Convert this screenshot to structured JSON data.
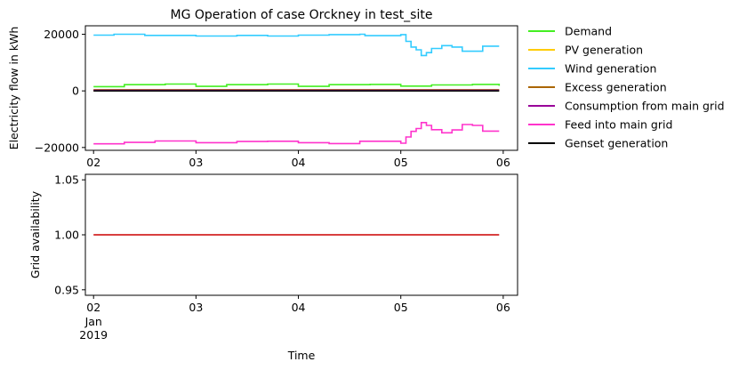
{
  "chart_data": [
    {
      "type": "line",
      "title": "MG Operation of case Orckney in test_site",
      "xlabel": "",
      "ylabel": "Electricity flow in kWh",
      "xlim": [
        1.92,
        6.14
      ],
      "ylim": [
        -21000,
        23000
      ],
      "yticks": [
        -20000,
        0,
        20000
      ],
      "yticklabels": [
        "−20000",
        "0",
        "20000"
      ],
      "xticks": [
        2,
        3,
        4,
        5,
        6
      ],
      "xticklabels": [
        "02",
        "03",
        "04",
        "05",
        "06"
      ],
      "legend_position": "outside-right",
      "series": [
        {
          "name": "Demand",
          "color": "#44ee22",
          "x": [
            2.0,
            2.3,
            2.7,
            3.0,
            3.3,
            3.7,
            4.0,
            4.3,
            4.7,
            5.0,
            5.3,
            5.7,
            5.96
          ],
          "values": [
            1500,
            2200,
            2400,
            1600,
            2200,
            2400,
            1600,
            2200,
            2300,
            1700,
            2100,
            2300,
            1800
          ]
        },
        {
          "name": "PV generation",
          "color": "#ffcc00",
          "x": [
            2.0,
            5.96
          ],
          "values": [
            0,
            0
          ]
        },
        {
          "name": "Wind generation",
          "color": "#33ccff",
          "x": [
            2.0,
            2.2,
            2.5,
            2.8,
            3.0,
            3.4,
            3.7,
            4.0,
            4.3,
            4.6,
            4.65,
            5.0,
            5.05,
            5.1,
            5.15,
            5.2,
            5.25,
            5.3,
            5.4,
            5.5,
            5.6,
            5.7,
            5.8,
            5.96
          ],
          "values": [
            19700,
            20000,
            19600,
            19600,
            19400,
            19600,
            19400,
            19700,
            19900,
            20000,
            19500,
            19900,
            17500,
            15500,
            14500,
            12500,
            13500,
            15000,
            16000,
            15500,
            14000,
            14000,
            15800,
            15800
          ]
        },
        {
          "name": "Excess generation",
          "color": "#aa6600",
          "x": [
            2.0,
            5.96
          ],
          "values": [
            400,
            400
          ]
        },
        {
          "name": "Consumption from main grid",
          "color": "#990099",
          "x": [
            2.0,
            5.96
          ],
          "values": [
            200,
            200
          ]
        },
        {
          "name": "Feed into main grid",
          "color": "#ff33cc",
          "x": [
            2.0,
            2.3,
            2.6,
            3.0,
            3.4,
            3.7,
            4.0,
            4.3,
            4.6,
            5.0,
            5.05,
            5.1,
            5.15,
            5.2,
            5.25,
            5.3,
            5.4,
            5.5,
            5.6,
            5.7,
            5.8,
            5.96
          ],
          "values": [
            -18700,
            -18200,
            -17700,
            -18300,
            -17900,
            -17800,
            -18300,
            -18600,
            -17800,
            -18500,
            -16300,
            -14300,
            -13300,
            -11200,
            -12200,
            -13700,
            -14800,
            -13800,
            -11900,
            -12200,
            -14200,
            -14200
          ]
        },
        {
          "name": "Genset generation",
          "color": "#000000",
          "x": [
            2.0,
            5.96
          ],
          "values": [
            0,
            0
          ]
        }
      ]
    },
    {
      "type": "line",
      "title": "",
      "xlabel": "Time",
      "ylabel": "Grid availability",
      "xlim": [
        1.92,
        6.14
      ],
      "ylim": [
        0.945,
        1.055
      ],
      "yticks": [
        0.95,
        1.0,
        1.05
      ],
      "yticklabels": [
        "0.95",
        "1.00",
        "1.05"
      ],
      "xticks": [
        2,
        3,
        4,
        5,
        6
      ],
      "xticklabels": [
        "02",
        "03",
        "04",
        "05",
        "06"
      ],
      "xtick_sub": [
        "Jan",
        "2019"
      ],
      "series": [
        {
          "color": "#cc0000",
          "x": [
            2.0,
            5.96
          ],
          "values": [
            1.0,
            1.0
          ]
        }
      ]
    }
  ]
}
